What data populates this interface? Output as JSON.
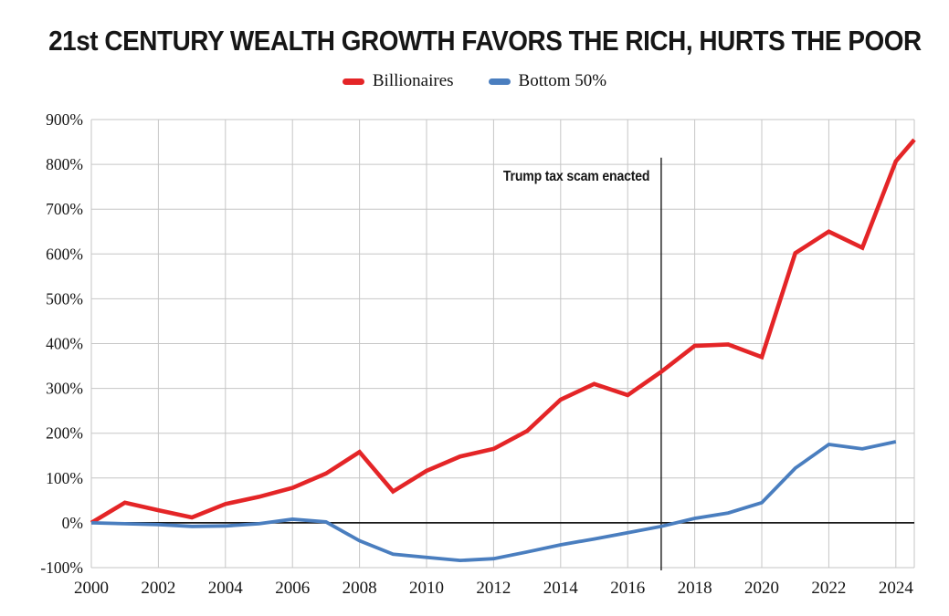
{
  "page": {
    "background_color": "#ffffff"
  },
  "chart_data": {
    "type": "line",
    "title": "21st CENTURY WEALTH GROWTH FAVORS THE RICH, HURTS THE POOR",
    "subtitle": "",
    "xlabel": "",
    "ylabel": "",
    "legend_position": "top-center",
    "grid": true,
    "grid_color": "#c6c6c6",
    "axis_color": "#1a1a1a",
    "tick_label_color": "#161616",
    "xlim": [
      2000,
      2024.55
    ],
    "ylim": [
      -100,
      900
    ],
    "x_ticks": [
      2000,
      2002,
      2004,
      2006,
      2008,
      2010,
      2012,
      2014,
      2016,
      2018,
      2020,
      2022,
      2024
    ],
    "x_tick_labels": [
      "2000",
      "2002",
      "2004",
      "2006",
      "2008",
      "2010",
      "2012",
      "2014",
      "2016",
      "2018",
      "2020",
      "2022",
      "2024"
    ],
    "y_ticks": [
      -100,
      0,
      100,
      200,
      300,
      400,
      500,
      600,
      700,
      800,
      900
    ],
    "y_tick_labels": [
      "-100%",
      "0%",
      "100%",
      "200%",
      "300%",
      "400%",
      "500%",
      "600%",
      "700%",
      "800%",
      "900%"
    ],
    "series": [
      {
        "name": "Billionaires",
        "color": "#e42527",
        "stroke_width": 4.6,
        "x": [
          2000,
          2001,
          2002,
          2003,
          2004,
          2005,
          2006,
          2007,
          2008,
          2009,
          2010,
          2011,
          2012,
          2013,
          2014,
          2015,
          2016,
          2017,
          2018,
          2019,
          2020,
          2021,
          2022,
          2023,
          2024,
          2024.55
        ],
        "values": [
          0,
          45,
          28,
          12,
          42,
          58,
          78,
          110,
          158,
          70,
          116,
          148,
          165,
          205,
          275,
          310,
          285,
          337,
          395,
          398,
          370,
          602,
          650,
          614,
          807,
          855
        ]
      },
      {
        "name": "Bottom 50%",
        "color": "#4a7ebf",
        "stroke_width": 3.8,
        "x": [
          2000,
          2001,
          2002,
          2003,
          2004,
          2005,
          2006,
          2007,
          2008,
          2009,
          2010,
          2011,
          2012,
          2013,
          2014,
          2015,
          2016,
          2017,
          2018,
          2019,
          2020,
          2021,
          2022,
          2023,
          2024
        ],
        "values": [
          0,
          -2,
          -4,
          -8,
          -7,
          -2,
          8,
          2,
          -40,
          -70,
          -77,
          -84,
          -80,
          -65,
          -49,
          -36,
          -22,
          -8,
          10,
          22,
          45,
          122,
          175,
          165,
          181
        ]
      }
    ],
    "annotation": {
      "text": "Trump tax scam enacted",
      "year": 2017,
      "line_top_value": 815,
      "line_bottom_value": -100
    }
  }
}
